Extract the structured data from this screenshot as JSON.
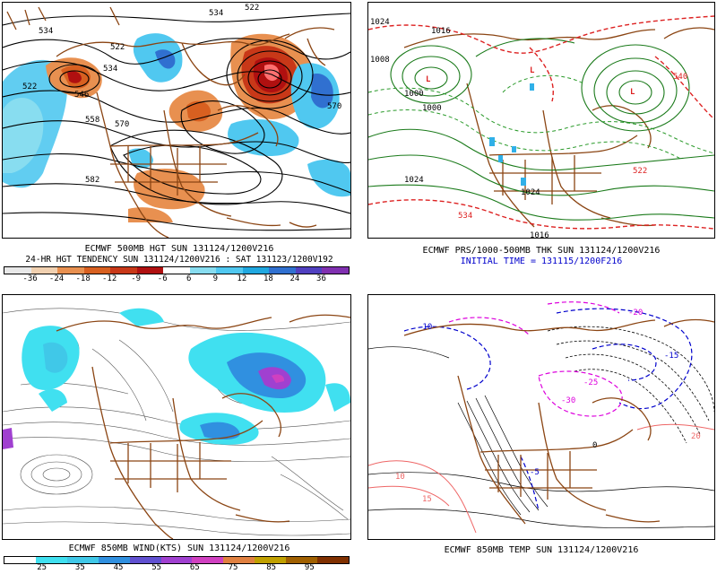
{
  "panels": [
    {
      "id": "p1",
      "caption1": "ECMWF 500MB HGT SUN 131124/1200V216",
      "caption2": "24-HR HGT TENDENCY SUN 131124/1200V216 : SAT 131123/1200V192",
      "contour_labels": [
        "534",
        "522",
        "534",
        "522",
        "534",
        "546",
        "522",
        "558",
        "570",
        "570",
        "582"
      ],
      "colorbar": {
        "colors": [
          "#e8e8e8",
          "#f0d0b0",
          "#e89050",
          "#d86020",
          "#c83818",
          "#b01010",
          "#ffffff",
          "#88ddf0",
          "#50c8f0",
          "#20a8e0",
          "#3070d0",
          "#5040c0",
          "#8030b0"
        ],
        "labels": [
          "-36",
          "-24",
          "-18",
          "-12",
          "-9",
          "-6",
          "6",
          "9",
          "12",
          "18",
          "24",
          "36"
        ]
      }
    },
    {
      "id": "p2",
      "caption1": "ECMWF PRS/1000-500MB THK SUN 131124/1200V216",
      "caption2": "INITIAL TIME = 131115/1200F216",
      "contour_labels": [
        "1024",
        "1016",
        "1008",
        "1000",
        "1000",
        "1024",
        "1024",
        "1016",
        "534",
        "522",
        "540"
      ]
    },
    {
      "id": "p3",
      "caption1": "ECMWF 850MB WIND(KTS) SUN 131124/1200V216",
      "colorbar": {
        "colors": [
          "#ffffff",
          "#40e0f0",
          "#40c8e8",
          "#3090e0",
          "#6050d0",
          "#a040d0",
          "#d040c0",
          "#e08040",
          "#c0a000",
          "#a06000",
          "#803000"
        ],
        "labels": [
          "25",
          "35",
          "45",
          "55",
          "65",
          "75",
          "85",
          "95"
        ]
      }
    },
    {
      "id": "p4",
      "caption1": "ECMWF 850MB TEMP SUN 131124/1200V216",
      "contour_labels": [
        "-10",
        "-20",
        "-30",
        "-15",
        "-25",
        "0",
        "10",
        "-5",
        "20",
        "15"
      ]
    }
  ],
  "colors": {
    "coast": "#8b4513",
    "contour": "#000000",
    "warm": "#d86020",
    "cold": "#30b0e8",
    "thickness_red": "#dd2222",
    "pressure_green": "#1a7a1a",
    "temp_blue": "#0000cc",
    "temp_magenta": "#dd00dd",
    "temp_red": "#ee6666"
  }
}
